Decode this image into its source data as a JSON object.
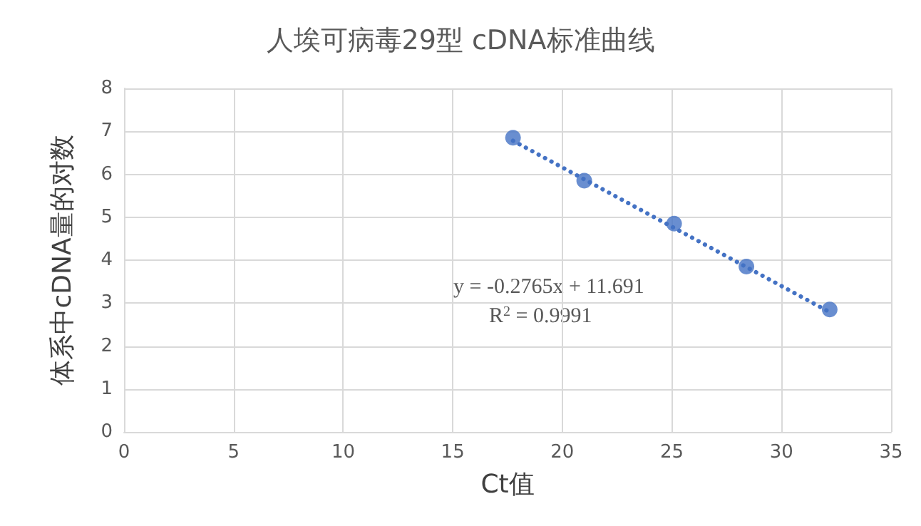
{
  "chart_data": {
    "type": "scatter",
    "title": "人埃可病毒29型 cDNA标准曲线",
    "xlabel": "Ct值",
    "ylabel": "体系中cDNA量的对数",
    "xlim": [
      0,
      35
    ],
    "xticks": [
      0,
      5,
      10,
      15,
      20,
      25,
      30,
      35
    ],
    "ylim": [
      0,
      8
    ],
    "yticks": [
      0,
      1,
      2,
      3,
      4,
      5,
      6,
      7,
      8
    ],
    "grid": true,
    "marker": "circle",
    "series": [
      {
        "color": "#4472c4",
        "x": [
          17.75,
          21.0,
          25.1,
          28.4,
          32.2
        ],
        "values": [
          6.85,
          5.85,
          4.85,
          3.85,
          2.85
        ]
      },
      {
        "type": "line",
        "color": "#4472c4",
        "line_style": "dotted",
        "marker": "none",
        "x": [
          17.75,
          32.2
        ],
        "values": [
          6.78,
          2.79
        ]
      }
    ],
    "annotations": [
      "y = -0.2765x + 11.691",
      "R$^{2}$ = 0.9991"
    ]
  }
}
